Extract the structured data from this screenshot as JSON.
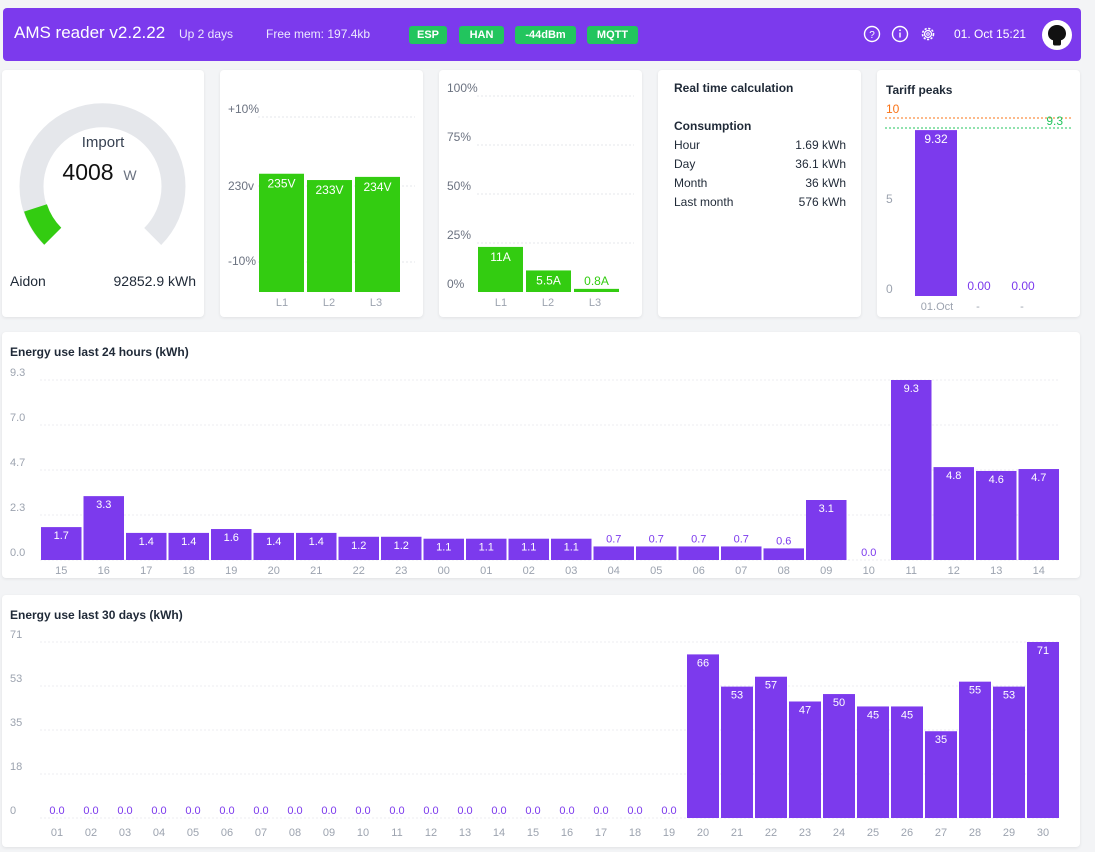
{
  "header": {
    "app_title": "AMS reader v2.2.22",
    "uptime": "Up 2 days",
    "free_mem": "Free mem: 197.4kb",
    "badges": [
      "ESP",
      "HAN",
      "-44dBm",
      "MQTT"
    ],
    "datetime": "01. Oct 15:21",
    "icons": [
      "help-icon",
      "info-icon",
      "gear-icon",
      "github-icon"
    ],
    "colors": {
      "bar": "#7c3aed",
      "badge": "#22c55e"
    }
  },
  "gauge": {
    "label": "Import",
    "value": "4008",
    "unit": "W",
    "meter": "Aidon",
    "total": "92852.9 kWh",
    "fill_fraction": 0.1,
    "color": "#33cc11"
  },
  "voltage": {
    "ticks": [
      "+10%",
      "230v",
      "-10%"
    ],
    "phases": [
      "L1",
      "L2",
      "L3"
    ],
    "labels": [
      "235V",
      "233V",
      "234V"
    ],
    "values": [
      235,
      233,
      234
    ]
  },
  "current": {
    "ticks": [
      "100%",
      "75%",
      "50%",
      "25%",
      "0%"
    ],
    "phases": [
      "L1",
      "L2",
      "L3"
    ],
    "labels": [
      "11A",
      "5.5A",
      "0.8A"
    ],
    "percent": [
      23,
      11,
      1.6
    ]
  },
  "realtime": {
    "title": "Real time calculation",
    "subtitle": "Consumption",
    "rows": [
      {
        "label": "Hour",
        "value": "1.69 kWh"
      },
      {
        "label": "Day",
        "value": "36.1 kWh"
      },
      {
        "label": "Month",
        "value": "36 kWh"
      },
      {
        "label": "Last month",
        "value": "576 kWh"
      }
    ]
  },
  "tariff": {
    "title": "Tariff peaks",
    "threshold_label": "10",
    "avg_label": "9.3",
    "ticks": [
      "5",
      "0"
    ],
    "x_labels": [
      "01.Oct",
      "-",
      "-"
    ],
    "bar_labels": [
      "9.32",
      "0.00",
      "0.00"
    ],
    "values": [
      9.32,
      0,
      0
    ],
    "threshold": 10,
    "avg": 9.3
  },
  "chart_data": [
    {
      "type": "bar",
      "title": "Energy use last 24 hours (kWh)",
      "categories": [
        "15",
        "16",
        "17",
        "18",
        "19",
        "20",
        "21",
        "22",
        "23",
        "00",
        "01",
        "02",
        "03",
        "04",
        "05",
        "06",
        "07",
        "08",
        "09",
        "10",
        "11",
        "12",
        "13",
        "14"
      ],
      "values": [
        1.7,
        3.3,
        1.4,
        1.4,
        1.6,
        1.4,
        1.4,
        1.2,
        1.2,
        1.1,
        1.1,
        1.1,
        1.1,
        0.7,
        0.7,
        0.7,
        0.7,
        0.6,
        3.1,
        0.0,
        9.3,
        4.8,
        4.6,
        4.7
      ],
      "value_labels": [
        "1.7",
        "3.3",
        "1.4",
        "1.4",
        "1.6",
        "1.4",
        "1.4",
        "1.2",
        "1.2",
        "1.1",
        "1.1",
        "1.1",
        "1.1",
        "0.7",
        "0.7",
        "0.7",
        "0.7",
        "0.6",
        "3.1",
        "0.0",
        "9.3",
        "4.8",
        "4.6",
        "4.7"
      ],
      "y_ticks": [
        "9.3",
        "7.0",
        "4.7",
        "2.3",
        "0.0"
      ],
      "ylim": [
        0,
        9.3
      ],
      "color": "#7c3aed"
    },
    {
      "type": "bar",
      "title": "Energy use last 30 days (kWh)",
      "categories": [
        "01",
        "02",
        "03",
        "04",
        "05",
        "06",
        "07",
        "08",
        "09",
        "10",
        "11",
        "12",
        "13",
        "14",
        "15",
        "16",
        "17",
        "18",
        "19",
        "20",
        "21",
        "22",
        "23",
        "24",
        "25",
        "26",
        "27",
        "28",
        "29",
        "30"
      ],
      "values": [
        0,
        0,
        0,
        0,
        0,
        0,
        0,
        0,
        0,
        0,
        0,
        0,
        0,
        0,
        0,
        0,
        0,
        0,
        0,
        66,
        53,
        57,
        47,
        50,
        45,
        45,
        35,
        55,
        53,
        71
      ],
      "value_labels": [
        "0.0",
        "0.0",
        "0.0",
        "0.0",
        "0.0",
        "0.0",
        "0.0",
        "0.0",
        "0.0",
        "0.0",
        "0.0",
        "0.0",
        "0.0",
        "0.0",
        "0.0",
        "0.0",
        "0.0",
        "0.0",
        "0.0",
        "66",
        "53",
        "57",
        "47",
        "50",
        "45",
        "45",
        "35",
        "55",
        "53",
        "71"
      ],
      "y_ticks": [
        "71",
        "53",
        "35",
        "18",
        "0"
      ],
      "ylim": [
        0,
        71
      ],
      "color": "#7c3aed"
    }
  ]
}
